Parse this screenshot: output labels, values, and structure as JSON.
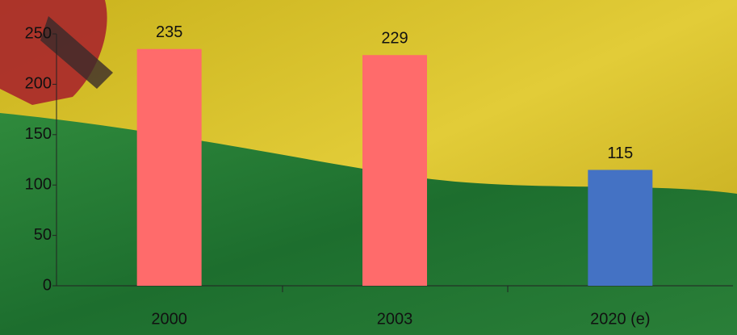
{
  "chart_data": {
    "type": "bar",
    "categories": [
      "2000",
      "2003",
      "2020 (e)"
    ],
    "values": [
      235,
      229,
      115
    ],
    "colors": [
      "#ff6b6b",
      "#ff6b6b",
      "#4472c4"
    ],
    "ylim": [
      0,
      250
    ],
    "yticks": [
      0,
      50,
      100,
      150,
      200,
      250
    ],
    "grid": false
  }
}
